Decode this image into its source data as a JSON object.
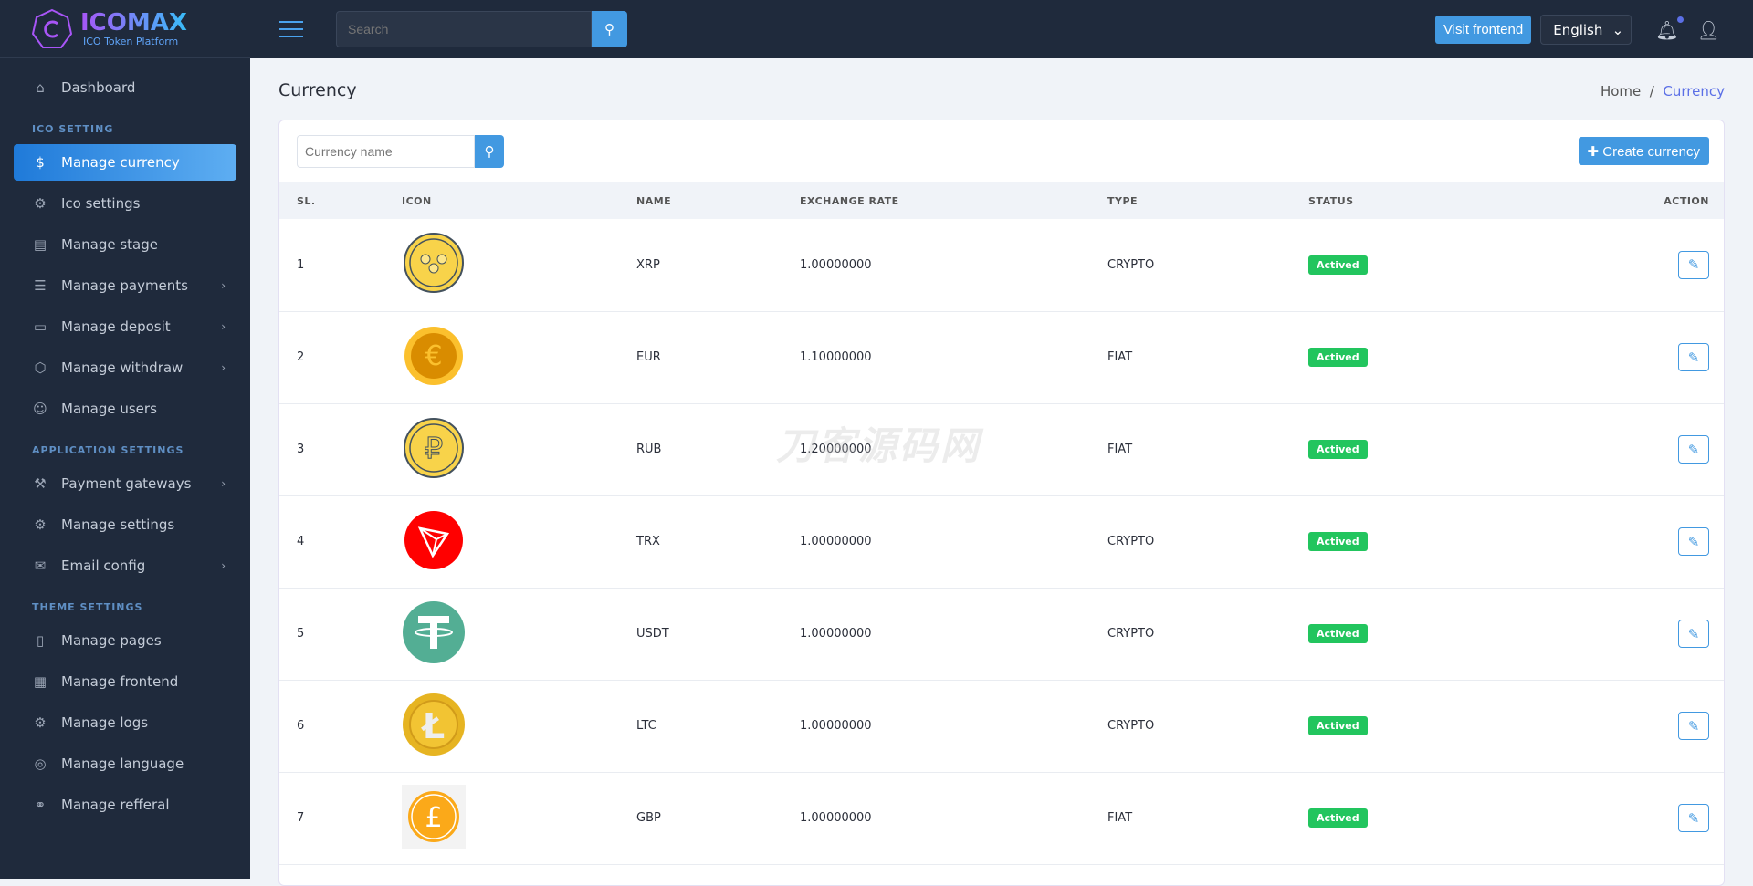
{
  "brand": {
    "name": "ICOMAX",
    "tagline": "ICO Token Platform"
  },
  "header": {
    "search_placeholder": "Search",
    "visit_frontend": "Visit frontend",
    "language": "English"
  },
  "sidebar": {
    "dashboard": "Dashboard",
    "sections": [
      "ICO SETTING",
      "APPLICATION SETTINGS",
      "THEME SETTINGS"
    ],
    "items": [
      "Manage currency",
      "Ico settings",
      "Manage stage",
      "Manage payments",
      "Manage deposit",
      "Manage withdraw",
      "Manage users",
      "Payment gateways",
      "Manage settings",
      "Email config",
      "Manage pages",
      "Manage frontend",
      "Manage logs",
      "Manage language",
      "Manage refferal"
    ]
  },
  "page": {
    "title": "Currency",
    "breadcrumb": {
      "home": "Home",
      "current": "Currency"
    }
  },
  "card": {
    "search_placeholder": "Currency name",
    "create_label": "Create currency"
  },
  "table": {
    "headers": [
      "SL.",
      "ICON",
      "NAME",
      "EXCHANGE RATE",
      "TYPE",
      "STATUS",
      "ACTION"
    ],
    "rows": [
      {
        "sl": "1",
        "icon": "xrp-coin",
        "name": "XRP",
        "rate": "1.00000000",
        "type": "CRYPTO",
        "status": "Actived"
      },
      {
        "sl": "2",
        "icon": "euro-coin",
        "name": "EUR",
        "rate": "1.10000000",
        "type": "FIAT",
        "status": "Actived"
      },
      {
        "sl": "3",
        "icon": "ruble-coin",
        "name": "RUB",
        "rate": "1.20000000",
        "type": "FIAT",
        "status": "Actived"
      },
      {
        "sl": "4",
        "icon": "tron-coin",
        "name": "TRX",
        "rate": "1.00000000",
        "type": "CRYPTO",
        "status": "Actived"
      },
      {
        "sl": "5",
        "icon": "tether-coin",
        "name": "USDT",
        "rate": "1.00000000",
        "type": "CRYPTO",
        "status": "Actived"
      },
      {
        "sl": "6",
        "icon": "litecoin-coin",
        "name": "LTC",
        "rate": "1.00000000",
        "type": "CRYPTO",
        "status": "Actived"
      },
      {
        "sl": "7",
        "icon": "pound-coin",
        "name": "GBP",
        "rate": "1.00000000",
        "type": "FIAT",
        "status": "Actived"
      }
    ]
  },
  "watermark": "刀客源码网",
  "colors": {
    "accent": "#4299e1",
    "sidebar_bg": "#1f2a3c",
    "status_active": "#22c55e"
  }
}
